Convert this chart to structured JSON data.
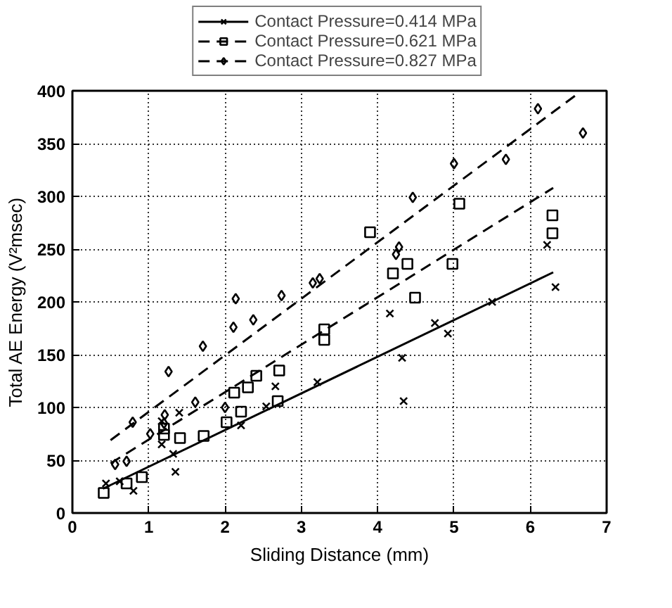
{
  "chart_data": {
    "type": "scatter",
    "xlabel": "Sliding Distance (mm)",
    "ylabel": "Total AE Energy (V²msec)",
    "xlim": [
      0,
      7
    ],
    "ylim": [
      0,
      400
    ],
    "xticks": [
      0,
      1,
      2,
      3,
      4,
      5,
      6,
      7
    ],
    "yticks": [
      0,
      50,
      100,
      150,
      200,
      250,
      300,
      350,
      400
    ],
    "grid": true,
    "legend": "top",
    "series": [
      {
        "name": "Contact Pressure=0.414 MPa",
        "color": "#000000",
        "marker": "cross",
        "x": [
          0.44,
          0.62,
          0.8,
          1.17,
          1.17,
          1.32,
          1.35,
          1.4,
          2.21,
          2.54,
          2.66,
          3.21,
          4.16,
          4.32,
          4.34,
          4.75,
          4.92,
          5.5,
          6.22,
          6.33
        ],
        "values": [
          28,
          30,
          21,
          87,
          65,
          56,
          39,
          95,
          83,
          101,
          120,
          124,
          189,
          147,
          106,
          180,
          170,
          200,
          254,
          214
        ]
      },
      {
        "type": "line",
        "color": "#000000",
        "line_style": "solid",
        "marker": "none",
        "x": [
          0.4,
          6.3
        ],
        "values": [
          23,
          228
        ]
      },
      {
        "name": "Contact Pressure=0.621 MPa",
        "color": "#000000",
        "marker": "square",
        "x": [
          0.41,
          0.71,
          0.91,
          1.2,
          1.2,
          1.41,
          1.72,
          2.02,
          2.12,
          2.21,
          2.3,
          2.41,
          2.69,
          2.71,
          3.3,
          3.3,
          3.9,
          4.2,
          4.39,
          4.49,
          4.98,
          5.07,
          6.29,
          6.29
        ],
        "values": [
          19,
          28,
          34,
          80,
          74,
          71,
          73,
          86,
          114,
          96,
          119,
          130,
          106,
          135,
          174,
          164,
          266,
          227,
          236,
          204,
          236,
          293,
          282,
          265
        ]
      },
      {
        "type": "line",
        "color": "#000000",
        "line_style": "dashed",
        "marker": "none",
        "x": [
          0.5,
          6.3
        ],
        "values": [
          47,
          308
        ]
      },
      {
        "name": "Contact Pressure=0.827 MPa",
        "color": "#000000",
        "marker": "diamond",
        "x": [
          0.56,
          0.71,
          0.79,
          1.02,
          1.2,
          1.21,
          1.26,
          1.61,
          1.71,
          2.0,
          2.11,
          2.14,
          2.37,
          2.74,
          3.15,
          3.24,
          4.24,
          4.28,
          4.46,
          5.0,
          5.68,
          6.1,
          6.69
        ],
        "values": [
          46,
          49,
          86,
          75,
          85,
          93,
          134,
          105,
          158,
          100,
          176,
          203,
          183,
          206,
          218,
          222,
          245,
          252,
          299,
          331,
          335,
          383,
          360
        ]
      },
      {
        "type": "line",
        "color": "#000000",
        "line_style": "dashed",
        "marker": "none",
        "x": [
          0.5,
          6.6
        ],
        "values": [
          69,
          396
        ]
      }
    ]
  }
}
